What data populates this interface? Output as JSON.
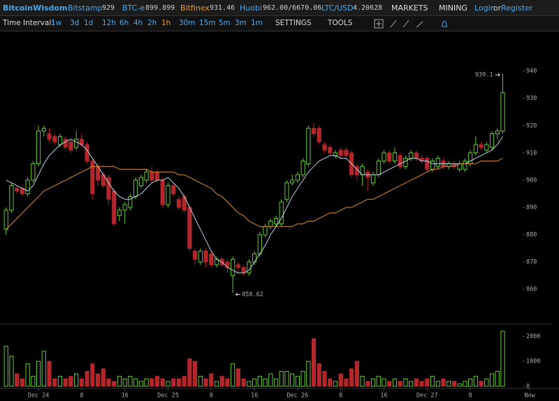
{
  "header": {
    "brand": "BitcoinWisdom",
    "tickers": [
      {
        "name": "Bitstamp",
        "price": "929"
      },
      {
        "name": "BTC-e",
        "price": "899.899"
      },
      {
        "name": "Bitfinex",
        "price": "931.46"
      },
      {
        "name": "Huobi",
        "price": "962.00/6670.06"
      },
      {
        "name": "LTC/USD",
        "price": "4.20628"
      }
    ],
    "menus": [
      "MARKETS",
      "MINING"
    ],
    "login": "Login",
    "or": "or",
    "register": "Register"
  },
  "toolbar": {
    "label": "Time Interval:",
    "intervals": [
      "1w",
      "3d",
      "1d",
      "12h",
      "6h",
      "4h",
      "2h",
      "1h",
      "30m",
      "15m",
      "5m",
      "3m",
      "1m"
    ],
    "active": "1h",
    "settings": "SETTINGS",
    "tools": "TOOLS"
  },
  "chart_data": {
    "type": "candlestick",
    "up_color": "#66cc33",
    "down_color": "#b3262b",
    "annotations": [
      "939.1",
      "858.62"
    ],
    "open": [
      882,
      889,
      897,
      897,
      895,
      900,
      906,
      918,
      917,
      916,
      913,
      915,
      914,
      912,
      915,
      913,
      907,
      905,
      902,
      901,
      896,
      887,
      889,
      890,
      894,
      898,
      900,
      903,
      903,
      900,
      891,
      898,
      893,
      894,
      890,
      874,
      870,
      874,
      873,
      869,
      871,
      870,
      865,
      869,
      868,
      866,
      870,
      873,
      880,
      883,
      884,
      884,
      893,
      899,
      900,
      902,
      906,
      919,
      919,
      913,
      912,
      909,
      911,
      911,
      910,
      905,
      902,
      903,
      899,
      902,
      907,
      910,
      907,
      909,
      905,
      908,
      910,
      908,
      908,
      904,
      905,
      907,
      905,
      906,
      904,
      904,
      906,
      910,
      913,
      911,
      912,
      917,
      918
    ],
    "high": [
      890,
      899,
      898,
      898,
      901,
      907,
      920,
      920,
      919,
      917,
      917,
      916,
      915,
      918,
      917,
      914,
      908,
      906,
      903,
      902,
      897,
      890,
      892,
      895,
      901,
      902,
      904,
      905,
      904,
      901,
      899,
      899,
      894,
      895,
      891,
      875,
      875,
      875,
      874,
      872,
      872,
      871,
      872,
      870,
      869,
      871,
      874,
      881,
      884,
      886,
      887,
      893,
      900,
      902,
      903,
      908,
      920,
      921,
      920,
      914,
      913,
      911,
      912,
      912,
      911,
      906,
      906,
      904,
      903,
      908,
      911,
      911,
      912,
      910,
      909,
      911,
      911,
      909,
      909,
      908,
      909,
      908,
      907,
      907,
      907,
      908,
      911,
      916,
      914,
      914,
      918,
      919,
      939.1
    ],
    "low": [
      880,
      888,
      895,
      894,
      894,
      899,
      905,
      916,
      914,
      913,
      912,
      911,
      910,
      911,
      912,
      906,
      893,
      898,
      897,
      891,
      883,
      885,
      884,
      889,
      893,
      897,
      899,
      899,
      899,
      890,
      890,
      894,
      889,
      888,
      874,
      869,
      869,
      868,
      868,
      868,
      868,
      866,
      858.62,
      866,
      865,
      865,
      869,
      872,
      879,
      882,
      883,
      883,
      892,
      898,
      899,
      901,
      905,
      916,
      913,
      910,
      909,
      908,
      908,
      908,
      901,
      900,
      898,
      896,
      898,
      901,
      906,
      906,
      906,
      904,
      904,
      907,
      907,
      906,
      903,
      903,
      904,
      904,
      904,
      904,
      903,
      903,
      905,
      909,
      911,
      910,
      911,
      915,
      917
    ],
    "close": [
      889,
      898,
      896,
      895,
      900,
      906,
      918,
      919,
      915,
      914,
      916,
      912,
      911,
      915,
      913,
      907,
      895,
      900,
      898,
      893,
      884,
      889,
      891,
      894,
      900,
      901,
      903,
      900,
      900,
      891,
      898,
      895,
      890,
      889,
      875,
      871,
      874,
      870,
      869,
      871,
      869,
      868,
      871,
      868,
      866,
      870,
      873,
      880,
      883,
      885,
      886,
      892,
      899,
      900,
      902,
      907,
      919,
      917,
      914,
      911,
      910,
      910,
      909,
      909,
      902,
      902,
      905,
      901,
      902,
      907,
      910,
      907,
      910,
      905,
      908,
      910,
      908,
      907,
      904,
      907,
      908,
      905,
      906,
      905,
      906,
      907,
      910,
      913,
      912,
      913,
      917,
      918,
      932
    ],
    "volume": [
      1600,
      1200,
      500,
      300,
      900,
      400,
      1000,
      1400,
      1000,
      300,
      400,
      300,
      400,
      500,
      300,
      600,
      900,
      500,
      700,
      300,
      200,
      400,
      300,
      400,
      300,
      200,
      300,
      300,
      400,
      300,
      200,
      300,
      300,
      400,
      1100,
      1000,
      400,
      300,
      500,
      200,
      400,
      300,
      900,
      700,
      300,
      200,
      300,
      400,
      300,
      500,
      300,
      600,
      600,
      500,
      400,
      600,
      1000,
      1900,
      900,
      600,
      300,
      200,
      500,
      300,
      700,
      1000,
      400,
      200,
      300,
      400,
      300,
      200,
      300,
      200,
      300,
      200,
      300,
      200,
      300,
      400,
      200,
      300,
      200,
      200,
      100,
      200,
      300,
      400,
      200,
      300,
      500,
      600,
      2200
    ],
    "moving_averages": [
      {
        "color": "#b8d4e8",
        "values": [
          900,
          899,
          898,
          897,
          896,
          898,
          902,
          906,
          909,
          911,
          913,
          914,
          915,
          914,
          913,
          911,
          908,
          905,
          902,
          899,
          896,
          894,
          893,
          893,
          894,
          895,
          897,
          899,
          900,
          900,
          901,
          899,
          897,
          894,
          890,
          886,
          882,
          878,
          874,
          871,
          870,
          868,
          867,
          866,
          866,
          867,
          870,
          873,
          876,
          880,
          883,
          886,
          890,
          894,
          897,
          900,
          903,
          905,
          907,
          908,
          909,
          909,
          908,
          908,
          906,
          904,
          902,
          902,
          902,
          902,
          903,
          904,
          905,
          906,
          907,
          908,
          908,
          907,
          907,
          906,
          906,
          906,
          906,
          906,
          906,
          906,
          907,
          908,
          909,
          910,
          911,
          913,
          916
        ]
      },
      {
        "color": "#d9902f",
        "values": [
          882,
          884,
          886,
          888,
          890,
          892,
          894,
          896,
          897,
          898,
          899,
          900,
          901,
          902,
          903,
          904,
          905,
          905,
          905,
          905,
          905,
          904,
          904,
          904,
          904,
          904,
          904,
          903,
          903,
          903,
          903,
          903,
          902,
          902,
          901,
          900,
          899,
          898,
          897,
          895,
          894,
          892,
          890,
          888,
          887,
          885,
          884,
          883,
          883,
          883,
          883,
          883,
          883,
          883,
          884,
          884,
          885,
          885,
          886,
          887,
          888,
          888,
          889,
          890,
          890,
          891,
          892,
          893,
          893,
          894,
          895,
          896,
          897,
          898,
          899,
          900,
          901,
          902,
          903,
          904,
          904,
          905,
          905,
          905,
          906,
          906,
          906,
          906,
          907,
          907,
          907,
          907,
          908
        ]
      }
    ],
    "xlim": [
      -1,
      101
    ],
    "xticks": [
      {
        "value": 6,
        "label": "Dec 24"
      },
      {
        "value": 14,
        "label": "8"
      },
      {
        "value": 22,
        "label": "16"
      },
      {
        "value": 30,
        "label": "Dec 25"
      },
      {
        "value": 38,
        "label": "8"
      },
      {
        "value": 46,
        "label": "16"
      },
      {
        "value": 54,
        "label": "Dec 26"
      },
      {
        "value": 62,
        "label": "8"
      },
      {
        "value": 70,
        "label": "16"
      },
      {
        "value": 78,
        "label": "Dec 27"
      },
      {
        "value": 86,
        "label": "8"
      },
      {
        "value": 97,
        "label": "Now"
      }
    ],
    "ylim": [
      848,
      944
    ],
    "yticks": [
      860,
      870,
      880,
      890,
      900,
      910,
      920,
      930,
      940
    ],
    "volume_ylim": [
      0,
      2400
    ],
    "volume_yticks": [
      0,
      1000,
      2000
    ]
  }
}
